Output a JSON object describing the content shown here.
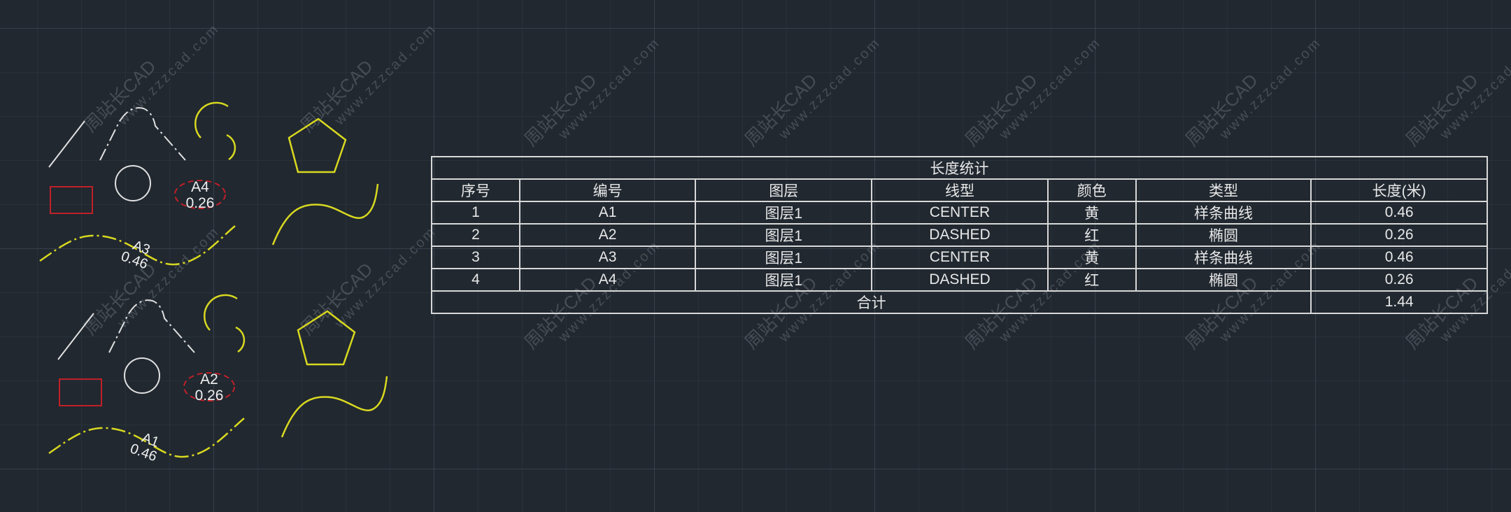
{
  "watermark": {
    "brand": "周站长CAD",
    "url": "www.zzzcad.com"
  },
  "drawing": {
    "labels": [
      {
        "id": "A4",
        "length": "0.26"
      },
      {
        "id": "A3",
        "length": "0.46"
      },
      {
        "id": "A2",
        "length": "0.26"
      },
      {
        "id": "A1",
        "length": "0.46"
      }
    ],
    "colors": {
      "yellow": "#d8d820",
      "red": "#c02028",
      "white": "#e0e0e0"
    }
  },
  "table": {
    "title": "长度统计",
    "headers": [
      "序号",
      "编号",
      "图层",
      "线型",
      "颜色",
      "类型",
      "长度(米)"
    ],
    "rows": [
      [
        "1",
        "A1",
        "图层1",
        "CENTER",
        "黄",
        "样条曲线",
        "0.46"
      ],
      [
        "2",
        "A2",
        "图层1",
        "DASHED",
        "红",
        "椭圆",
        "0.26"
      ],
      [
        "3",
        "A3",
        "图层1",
        "CENTER",
        "黄",
        "样条曲线",
        "0.46"
      ],
      [
        "4",
        "A4",
        "图层1",
        "DASHED",
        "红",
        "椭圆",
        "0.26"
      ]
    ],
    "total_label": "合计",
    "total_value": "1.44"
  }
}
